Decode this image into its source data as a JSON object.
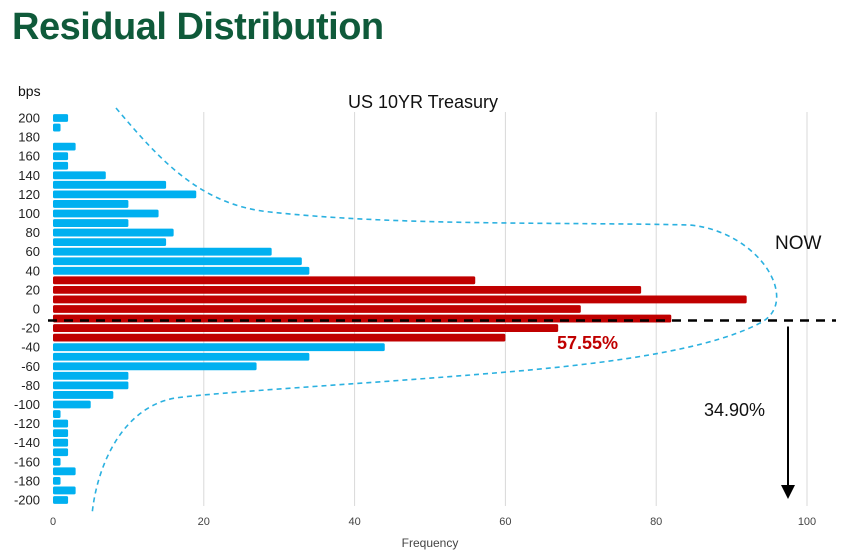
{
  "page": {
    "title": "Residual Distribution"
  },
  "chart_data": {
    "type": "bar",
    "orientation": "horizontal",
    "title": "US 10YR Treasury",
    "ylabel": "bps",
    "xlabel": "Frequency",
    "xlim": [
      0,
      100
    ],
    "xticks": [
      0,
      20,
      40,
      60,
      80,
      100
    ],
    "ylim": [
      -200,
      200
    ],
    "yticks": [
      200,
      180,
      160,
      140,
      120,
      100,
      80,
      60,
      40,
      20,
      0,
      -20,
      -40,
      -60,
      -80,
      -100,
      -120,
      -140,
      -160,
      -180,
      -200
    ],
    "grid": "vertical",
    "bar_width": 10,
    "bins": [
      200,
      190,
      180,
      170,
      160,
      150,
      140,
      130,
      120,
      110,
      100,
      90,
      80,
      70,
      60,
      50,
      40,
      30,
      20,
      10,
      0,
      -10,
      -20,
      -30,
      -40,
      -50,
      -60,
      -70,
      -80,
      -90,
      -100,
      -110,
      -120,
      -130,
      -140,
      -150,
      -160,
      -170,
      -180,
      -190,
      -200
    ],
    "values": [
      2,
      1,
      0,
      3,
      2,
      2,
      7,
      15,
      19,
      10,
      14,
      10,
      16,
      15,
      29,
      33,
      34,
      56,
      78,
      92,
      70,
      82,
      67,
      60,
      44,
      34,
      27,
      10,
      10,
      8,
      5,
      1,
      2,
      2,
      2,
      2,
      1,
      3,
      1,
      3,
      2
    ],
    "highlight_range": [
      -30,
      30
    ],
    "colors": {
      "base": "#00b0f0",
      "highlight": "#c00000",
      "curve": "#2bb1e0",
      "title": "#0f5a3a"
    },
    "current_level": -12,
    "annotations": {
      "now_label": "NOW",
      "inside_pct": "57.55%",
      "below_pct": "34.90%"
    }
  }
}
